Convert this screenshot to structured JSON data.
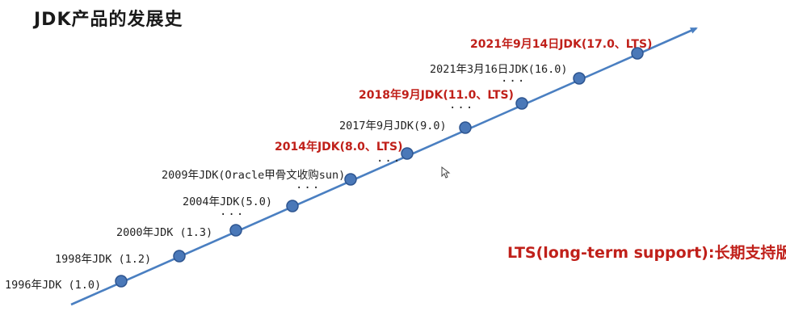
{
  "title": "JDK产品的发展史",
  "colors": {
    "axis": "#4a7fc1",
    "node_fill": "#4a78b8",
    "node_stroke": "#2e5590",
    "lts_text": "#c0201a",
    "normal_text": "#222222"
  },
  "milestones": [
    {
      "label": "1996年JDK (1.0)",
      "lts": false
    },
    {
      "label": "1998年JDK (1.2)",
      "lts": false
    },
    {
      "label": "2000年JDK (1.3)",
      "lts": false
    },
    {
      "label": "2004年JDK(5.0)",
      "lts": false
    },
    {
      "label": "2009年JDK(Oracle甲骨文收购sun)",
      "lts": false
    },
    {
      "label": "2014年JDK(8.0、LTS)",
      "lts": true
    },
    {
      "label": "2017年9月JDK(9.0)",
      "lts": false
    },
    {
      "label": "2018年9月JDK(11.0、LTS)",
      "lts": true
    },
    {
      "label": "2021年3月16日JDK(16.0)",
      "lts": false
    },
    {
      "label": "2021年9月14日JDK(17.0、LTS)",
      "lts": true
    }
  ],
  "gap_marker": "...",
  "lts_note": "LTS(long-term support):长期支持版",
  "icons": {
    "cursor": "mouse-pointer-icon"
  }
}
